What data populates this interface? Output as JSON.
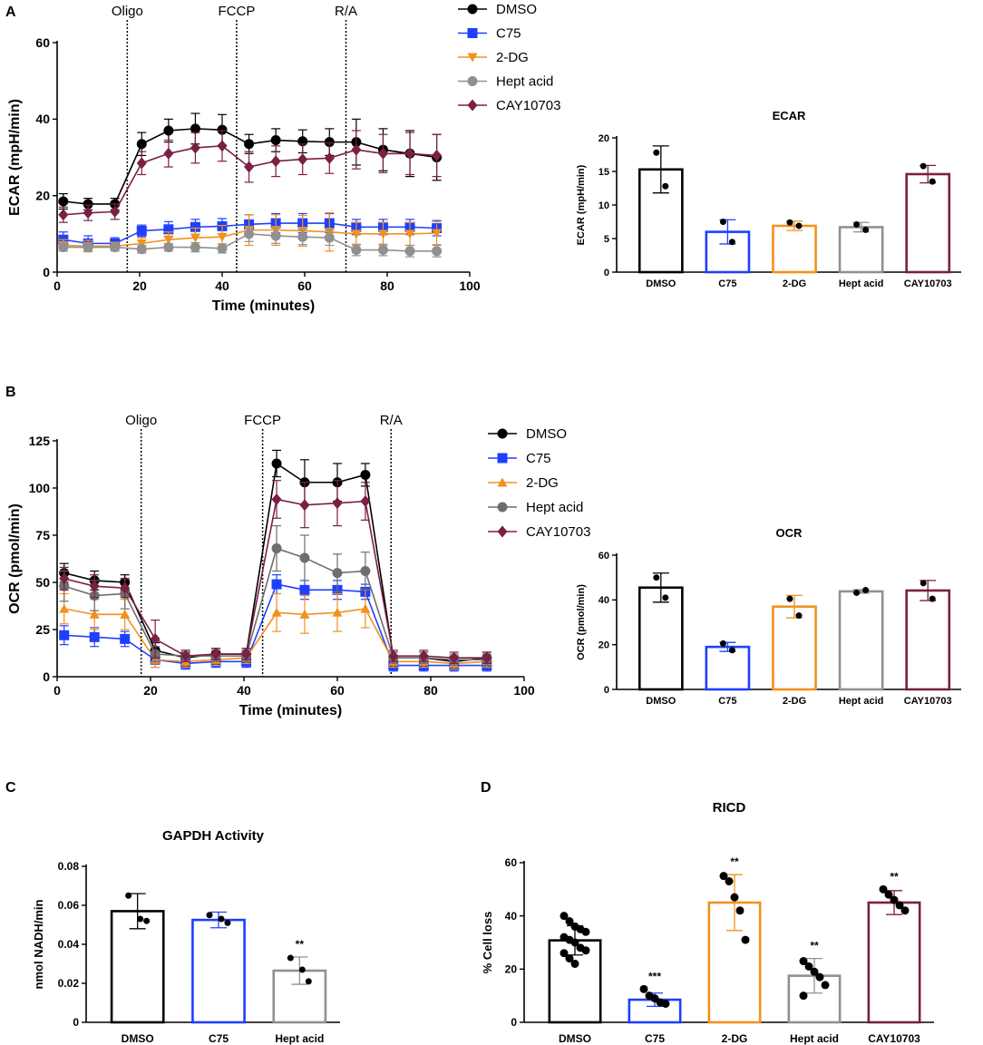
{
  "chart_data": [
    {
      "id": "A_line",
      "panel": "A",
      "type": "line",
      "xlabel": "Time (minutes)",
      "ylabel": "ECAR (mpH/min)",
      "xlim": [
        0,
        100
      ],
      "ylim": [
        0,
        60
      ],
      "xticks": [
        0,
        20,
        40,
        60,
        80,
        100
      ],
      "yticks": [
        0,
        20,
        40,
        60
      ],
      "injections": [
        {
          "label": "Oligo",
          "x": 17
        },
        {
          "label": "FCCP",
          "x": 43.5
        },
        {
          "label": "R/A",
          "x": 70
        }
      ],
      "x": [
        1.5,
        7.5,
        14,
        20.5,
        27,
        33.5,
        40,
        46.5,
        53,
        59.5,
        66,
        72.5,
        79,
        85.5,
        92
      ],
      "series": [
        {
          "name": "DMSO",
          "color": "#000000",
          "marker": "circle",
          "values": [
            18.5,
            17.8,
            17.8,
            33.5,
            37,
            37.5,
            37.2,
            33.5,
            34.5,
            34.2,
            34,
            34,
            32,
            31,
            30
          ],
          "errors": [
            2,
            1.5,
            1.5,
            3,
            3,
            4,
            4,
            2.5,
            3,
            3,
            3.5,
            6,
            5.5,
            6,
            6
          ]
        },
        {
          "name": "C75",
          "color": "#1f3fff",
          "marker": "square",
          "values": [
            8.5,
            7.5,
            7.5,
            10.8,
            11.2,
            11.8,
            12,
            12.5,
            12.8,
            12.8,
            12.8,
            11.8,
            11.8,
            11.8,
            11.5
          ],
          "errors": [
            2,
            2,
            1.5,
            1.5,
            2,
            2,
            2,
            2.5,
            2.5,
            2.5,
            2.5,
            2,
            2,
            2,
            2
          ]
        },
        {
          "name": "2-DG",
          "color": "#f0921e",
          "marker": "triangle-down",
          "values": [
            7,
            6.8,
            6.8,
            7.5,
            8.5,
            9,
            9.2,
            11,
            11,
            10.8,
            10.5,
            10,
            10,
            10,
            10.2
          ],
          "errors": [
            1.5,
            1.5,
            1,
            1.5,
            2,
            2.5,
            3,
            4,
            4,
            4,
            5,
            3,
            3,
            3,
            3
          ]
        },
        {
          "name": "Hept acid",
          "color": "#909090",
          "marker": "circle",
          "values": [
            6.5,
            6.5,
            6.5,
            6,
            6.5,
            6.5,
            6.2,
            10,
            9.5,
            9.2,
            9,
            5.8,
            5.8,
            5.5,
            5.5
          ],
          "errors": [
            1,
            1,
            1,
            1,
            1,
            1.2,
            1.2,
            2,
            2,
            2,
            2,
            1.5,
            1.5,
            1.5,
            1.5
          ]
        },
        {
          "name": "CAY10703",
          "color": "#7a1f45",
          "marker": "diamond",
          "values": [
            15,
            15.5,
            15.8,
            28.5,
            31,
            32.5,
            33,
            27.5,
            29,
            29.5,
            29.8,
            32,
            31,
            31,
            30.5
          ],
          "errors": [
            2,
            2,
            2,
            3,
            3.5,
            4,
            4,
            4,
            4,
            4,
            4,
            5,
            5,
            5.5,
            5.5
          ]
        }
      ]
    },
    {
      "id": "A_bar",
      "panel": "A",
      "type": "bar",
      "title": "ECAR",
      "ylabel": "ECAR (mpH/min)",
      "ylim": [
        0,
        20
      ],
      "yticks": [
        0,
        5,
        10,
        15,
        20
      ],
      "categories": [
        "DMSO",
        "C75",
        "2-DG",
        "Hept acid",
        "CAY10703"
      ],
      "colors": [
        "#000000",
        "#1f3fff",
        "#f0921e",
        "#909090",
        "#7a1f45"
      ],
      "values": [
        15.3,
        6,
        6.9,
        6.7,
        14.6
      ],
      "errors": [
        3.5,
        1.8,
        0.7,
        0.7,
        1.3
      ],
      "points": [
        [
          17.8,
          12.8
        ],
        [
          7.5,
          4.5
        ],
        [
          7.4,
          6.9
        ],
        [
          7.1,
          6.3
        ],
        [
          15.8,
          13.5
        ]
      ]
    },
    {
      "id": "B_line",
      "panel": "B",
      "type": "line",
      "xlabel": "Time (minutes)",
      "ylabel": "OCR (pmol/min)",
      "xlim": [
        0,
        100
      ],
      "ylim": [
        0,
        125
      ],
      "xticks": [
        0,
        20,
        40,
        60,
        80,
        100
      ],
      "yticks": [
        0,
        25,
        50,
        75,
        100,
        125
      ],
      "injections": [
        {
          "label": "Oligo",
          "x": 18
        },
        {
          "label": "FCCP",
          "x": 44
        },
        {
          "label": "R/A",
          "x": 71.5
        }
      ],
      "x": [
        1.5,
        8,
        14.5,
        21,
        27.5,
        34,
        40.5,
        47,
        53,
        60,
        66,
        72,
        78.5,
        85,
        92
      ],
      "series": [
        {
          "name": "DMSO",
          "color": "#000000",
          "marker": "circle",
          "values": [
            55,
            51,
            50,
            14,
            10,
            12,
            12,
            113,
            103,
            103,
            107,
            10,
            10,
            8,
            10
          ],
          "errors": [
            5,
            5,
            4,
            4,
            3,
            3,
            3,
            7,
            12,
            10,
            6,
            3,
            3,
            3,
            3
          ]
        },
        {
          "name": "C75",
          "color": "#1f3fff",
          "marker": "square",
          "values": [
            22,
            21,
            20,
            9,
            7,
            8,
            8,
            49,
            46,
            46,
            45,
            6,
            6,
            6,
            6
          ],
          "errors": [
            5,
            5,
            4,
            4,
            3,
            3,
            3,
            5,
            5,
            5,
            4,
            3,
            3,
            3,
            3
          ]
        },
        {
          "name": "2-DG",
          "color": "#f0921e",
          "marker": "triangle",
          "values": [
            36,
            33,
            33,
            9,
            8,
            9,
            10,
            34,
            33,
            34,
            36,
            8,
            8,
            7,
            8
          ],
          "errors": [
            8,
            8,
            8,
            4,
            3,
            3,
            3,
            10,
            10,
            10,
            10,
            3,
            3,
            3,
            3
          ]
        },
        {
          "name": "Hept acid",
          "color": "#6e6e6e",
          "marker": "circle",
          "values": [
            48,
            43,
            44,
            12,
            11,
            11,
            11,
            68,
            63,
            55,
            56,
            10,
            10,
            9,
            9
          ],
          "errors": [
            8,
            8,
            8,
            4,
            3,
            3,
            3,
            12,
            12,
            10,
            10,
            3,
            3,
            3,
            3
          ]
        },
        {
          "name": "CAY10703",
          "color": "#7a1f45",
          "marker": "diamond",
          "values": [
            52,
            48,
            47,
            20,
            11,
            12,
            12,
            94,
            91,
            92,
            93,
            11,
            11,
            10,
            10
          ],
          "errors": [
            6,
            6,
            5,
            10,
            3,
            3,
            3,
            10,
            12,
            12,
            10,
            3,
            3,
            3,
            3
          ]
        }
      ]
    },
    {
      "id": "B_bar",
      "panel": "B",
      "type": "bar",
      "title": "OCR",
      "ylabel": "OCR (pmol/min)",
      "ylim": [
        0,
        60
      ],
      "yticks": [
        0,
        20,
        40,
        60
      ],
      "categories": [
        "DMSO",
        "C75",
        "2-DG",
        "Hept acid",
        "CAY10703"
      ],
      "colors": [
        "#000000",
        "#1f3fff",
        "#f0921e",
        "#909090",
        "#7a1f45"
      ],
      "values": [
        45.5,
        19,
        37,
        43.8,
        44.2
      ],
      "errors": [
        6.5,
        2,
        5,
        0.8,
        4.5
      ],
      "points": [
        [
          50,
          41
        ],
        [
          20.5,
          17.5
        ],
        [
          40.5,
          33
        ],
        [
          43.2,
          44.4
        ],
        [
          47.5,
          40.5
        ]
      ]
    },
    {
      "id": "C_bar",
      "panel": "C",
      "type": "bar",
      "title": "GAPDH Activity",
      "ylabel": "nmol NADH/min",
      "ylim": [
        0,
        0.08
      ],
      "yticks": [
        0,
        0.02,
        0.04,
        0.06,
        0.08
      ],
      "categories": [
        "DMSO",
        "C75",
        "Hept acid"
      ],
      "colors": [
        "#000000",
        "#1f3fff",
        "#909090"
      ],
      "values": [
        0.057,
        0.0525,
        0.0265
      ],
      "errors": [
        0.009,
        0.004,
        0.007
      ],
      "significance": [
        "",
        "",
        "**"
      ],
      "points": [
        [
          0.065,
          0.053,
          0.052
        ],
        [
          0.055,
          0.053,
          0.051
        ],
        [
          0.033,
          0.027,
          0.021
        ]
      ]
    },
    {
      "id": "D_bar",
      "panel": "D",
      "type": "bar",
      "title": "RICD",
      "ylabel": "% Cell loss",
      "ylim": [
        0,
        60
      ],
      "yticks": [
        0,
        20,
        40,
        60
      ],
      "categories": [
        "DMSO",
        "C75",
        "2-DG",
        "Hept acid",
        "CAY10703"
      ],
      "colors": [
        "#000000",
        "#1f3fff",
        "#f0921e",
        "#909090",
        "#7a1f45"
      ],
      "values": [
        30.8,
        8.5,
        45,
        17.5,
        45
      ],
      "errors": [
        5.5,
        2.5,
        10.5,
        6.5,
        4.5
      ],
      "significance": [
        "",
        "***",
        "**",
        "**",
        "**"
      ],
      "points": [
        [
          40,
          38,
          36,
          35,
          34,
          32,
          31,
          30,
          28,
          27,
          26,
          24,
          22
        ],
        [
          12.5,
          10,
          9,
          7.5,
          7
        ],
        [
          55,
          53,
          47,
          42,
          31
        ],
        [
          23,
          21,
          19,
          17,
          14,
          10
        ],
        [
          50,
          48,
          46,
          44,
          42
        ]
      ]
    }
  ],
  "panel_labels": [
    "A",
    "B",
    "C",
    "D"
  ]
}
